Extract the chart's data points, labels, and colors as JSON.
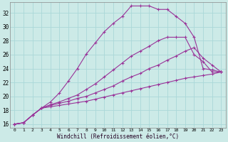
{
  "xlabel": "Windchill (Refroidissement éolien,°C)",
  "bg_color": "#cceae7",
  "line_color": "#993399",
  "grid_color": "#aad8d8",
  "xlim": [
    -0.5,
    23.5
  ],
  "ylim": [
    15.5,
    33.5
  ],
  "xticks": [
    0,
    1,
    2,
    3,
    4,
    5,
    6,
    7,
    8,
    9,
    10,
    11,
    12,
    13,
    14,
    15,
    16,
    17,
    18,
    19,
    20,
    21,
    22,
    23
  ],
  "yticks": [
    16,
    18,
    20,
    22,
    24,
    26,
    28,
    30,
    32
  ],
  "lines": [
    {
      "x": [
        0,
        1,
        2,
        3,
        4,
        5,
        6,
        7,
        8,
        9,
        10,
        11,
        12,
        13,
        14,
        15,
        16,
        17,
        18,
        19,
        20,
        21,
        22,
        23
      ],
      "y": [
        16,
        16.2,
        17.3,
        18.3,
        19.2,
        20.5,
        22.2,
        24.0,
        26.1,
        27.7,
        29.3,
        30.5,
        31.5,
        33.0,
        33.0,
        33.0,
        32.5,
        32.5,
        31.5,
        30.5,
        28.5,
        24.0,
        23.8,
        23.5
      ]
    },
    {
      "x": [
        0,
        1,
        2,
        3,
        4,
        5,
        6,
        7,
        8,
        9,
        10,
        11,
        12,
        13,
        14,
        15,
        16,
        17,
        18,
        19,
        20,
        21,
        22,
        23
      ],
      "y": [
        16,
        16.2,
        17.3,
        18.3,
        18.8,
        19.2,
        19.7,
        20.2,
        21.0,
        21.8,
        22.8,
        23.8,
        24.8,
        25.8,
        26.5,
        27.2,
        28.0,
        28.5,
        28.5,
        28.5,
        26.0,
        25.0,
        23.5,
        23.5
      ]
    },
    {
      "x": [
        0,
        1,
        2,
        3,
        4,
        5,
        6,
        7,
        8,
        9,
        10,
        11,
        12,
        13,
        14,
        15,
        16,
        17,
        18,
        19,
        20,
        21,
        22,
        23
      ],
      "y": [
        16,
        16.2,
        17.3,
        18.3,
        18.7,
        19.0,
        19.3,
        19.7,
        20.0,
        20.5,
        21.0,
        21.5,
        22.2,
        22.8,
        23.3,
        24.0,
        24.5,
        25.2,
        25.8,
        26.5,
        27.0,
        25.5,
        24.5,
        23.5
      ]
    },
    {
      "x": [
        0,
        1,
        2,
        3,
        4,
        5,
        6,
        7,
        8,
        9,
        10,
        11,
        12,
        13,
        14,
        15,
        16,
        17,
        18,
        19,
        20,
        21,
        22,
        23
      ],
      "y": [
        16,
        16.2,
        17.3,
        18.3,
        18.5,
        18.7,
        18.9,
        19.1,
        19.3,
        19.6,
        19.9,
        20.2,
        20.5,
        20.8,
        21.1,
        21.4,
        21.7,
        22.0,
        22.3,
        22.6,
        22.8,
        23.0,
        23.2,
        23.5
      ]
    }
  ]
}
